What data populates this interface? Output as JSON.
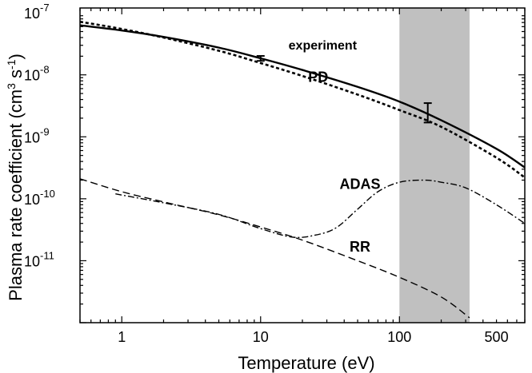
{
  "chart_data": {
    "type": "line",
    "xlabel": "Temperature (eV)",
    "ylabel_main": "Plasma rate coefficient (cm",
    "ylabel_sup1": "3",
    "ylabel_mid": " s",
    "ylabel_sup2": "-1",
    "ylabel_end": ")",
    "x_scale": "log",
    "y_scale": "log",
    "xlim": [
      0.5,
      800
    ],
    "ylim": [
      1e-12,
      1.2e-07
    ],
    "x_ticks": [
      {
        "value": 1,
        "label": "1"
      },
      {
        "value": 10,
        "label": "10"
      },
      {
        "value": 100,
        "label": "100"
      },
      {
        "value": 500,
        "label": "500"
      }
    ],
    "y_ticks": [
      {
        "value": 1e-11,
        "mant": "10",
        "exp": "-11"
      },
      {
        "value": 1e-10,
        "mant": "10",
        "exp": "-10"
      },
      {
        "value": 1e-09,
        "mant": "10",
        "exp": "-9"
      },
      {
        "value": 1e-08,
        "mant": "10",
        "exp": "-8"
      },
      {
        "value": 1e-07,
        "mant": "10",
        "exp": "-7"
      }
    ],
    "shaded_band": {
      "x_from": 100,
      "x_to": 320,
      "color": "#c0c0c0"
    },
    "series": [
      {
        "name": "experiment",
        "style": "solid",
        "x": [
          0.5,
          1,
          2,
          5,
          10,
          20,
          50,
          100,
          200,
          500,
          800
        ],
        "y": [
          6.3e-08,
          5.2e-08,
          4.1e-08,
          2.75e-08,
          1.85e-08,
          1.2e-08,
          6.4e-09,
          3.7e-09,
          1.85e-09,
          6.4e-10,
          3.2e-10
        ],
        "error_bars": [
          {
            "x": 10,
            "y": 1.85e-08,
            "low": 1.68e-08,
            "high": 2.02e-08
          },
          {
            "x": 160,
            "y": 2.45e-09,
            "low": 1.7e-09,
            "high": 3.5e-09
          }
        ]
      },
      {
        "name": "PD",
        "style": "dotted",
        "x": [
          0.5,
          1,
          2,
          5,
          10,
          20,
          50,
          100,
          200,
          500,
          800
        ],
        "y": [
          7.2e-08,
          5.5e-08,
          4e-08,
          2.45e-08,
          1.55e-08,
          9.6e-09,
          4.8e-09,
          2.7e-09,
          1.45e-09,
          4.6e-10,
          2.2e-10
        ]
      },
      {
        "name": "ADAS",
        "style": "dashdot",
        "x": [
          0.9,
          2,
          5,
          10,
          17,
          25,
          35,
          50,
          70,
          100,
          150,
          200,
          300,
          500,
          800
        ],
        "y": [
          1.2e-10,
          8.6e-11,
          5.6e-11,
          3.3e-11,
          2.4e-11,
          2.6e-11,
          3.4e-11,
          6.8e-11,
          1.3e-10,
          1.85e-10,
          2e-10,
          1.85e-10,
          1.5e-10,
          8e-11,
          4e-11
        ]
      },
      {
        "name": "RR",
        "style": "dashed",
        "x": [
          0.5,
          1,
          2,
          5,
          10,
          20,
          50,
          100,
          200,
          320
        ],
        "y": [
          2.1e-10,
          1.3e-10,
          8.9e-11,
          5.5e-11,
          3.5e-11,
          2.15e-11,
          1e-11,
          5.4e-12,
          2.6e-12,
          1.2e-12
        ]
      }
    ],
    "annotations": [
      {
        "text": "experiment",
        "x": 28,
        "y": 2.55e-08
      },
      {
        "text": "PD",
        "x": 26,
        "y": 7.7e-09
      },
      {
        "text": "ADAS",
        "x": 52,
        "y": 1.45e-10
      },
      {
        "text": "RR",
        "x": 52,
        "y": 1.4e-11
      }
    ]
  }
}
